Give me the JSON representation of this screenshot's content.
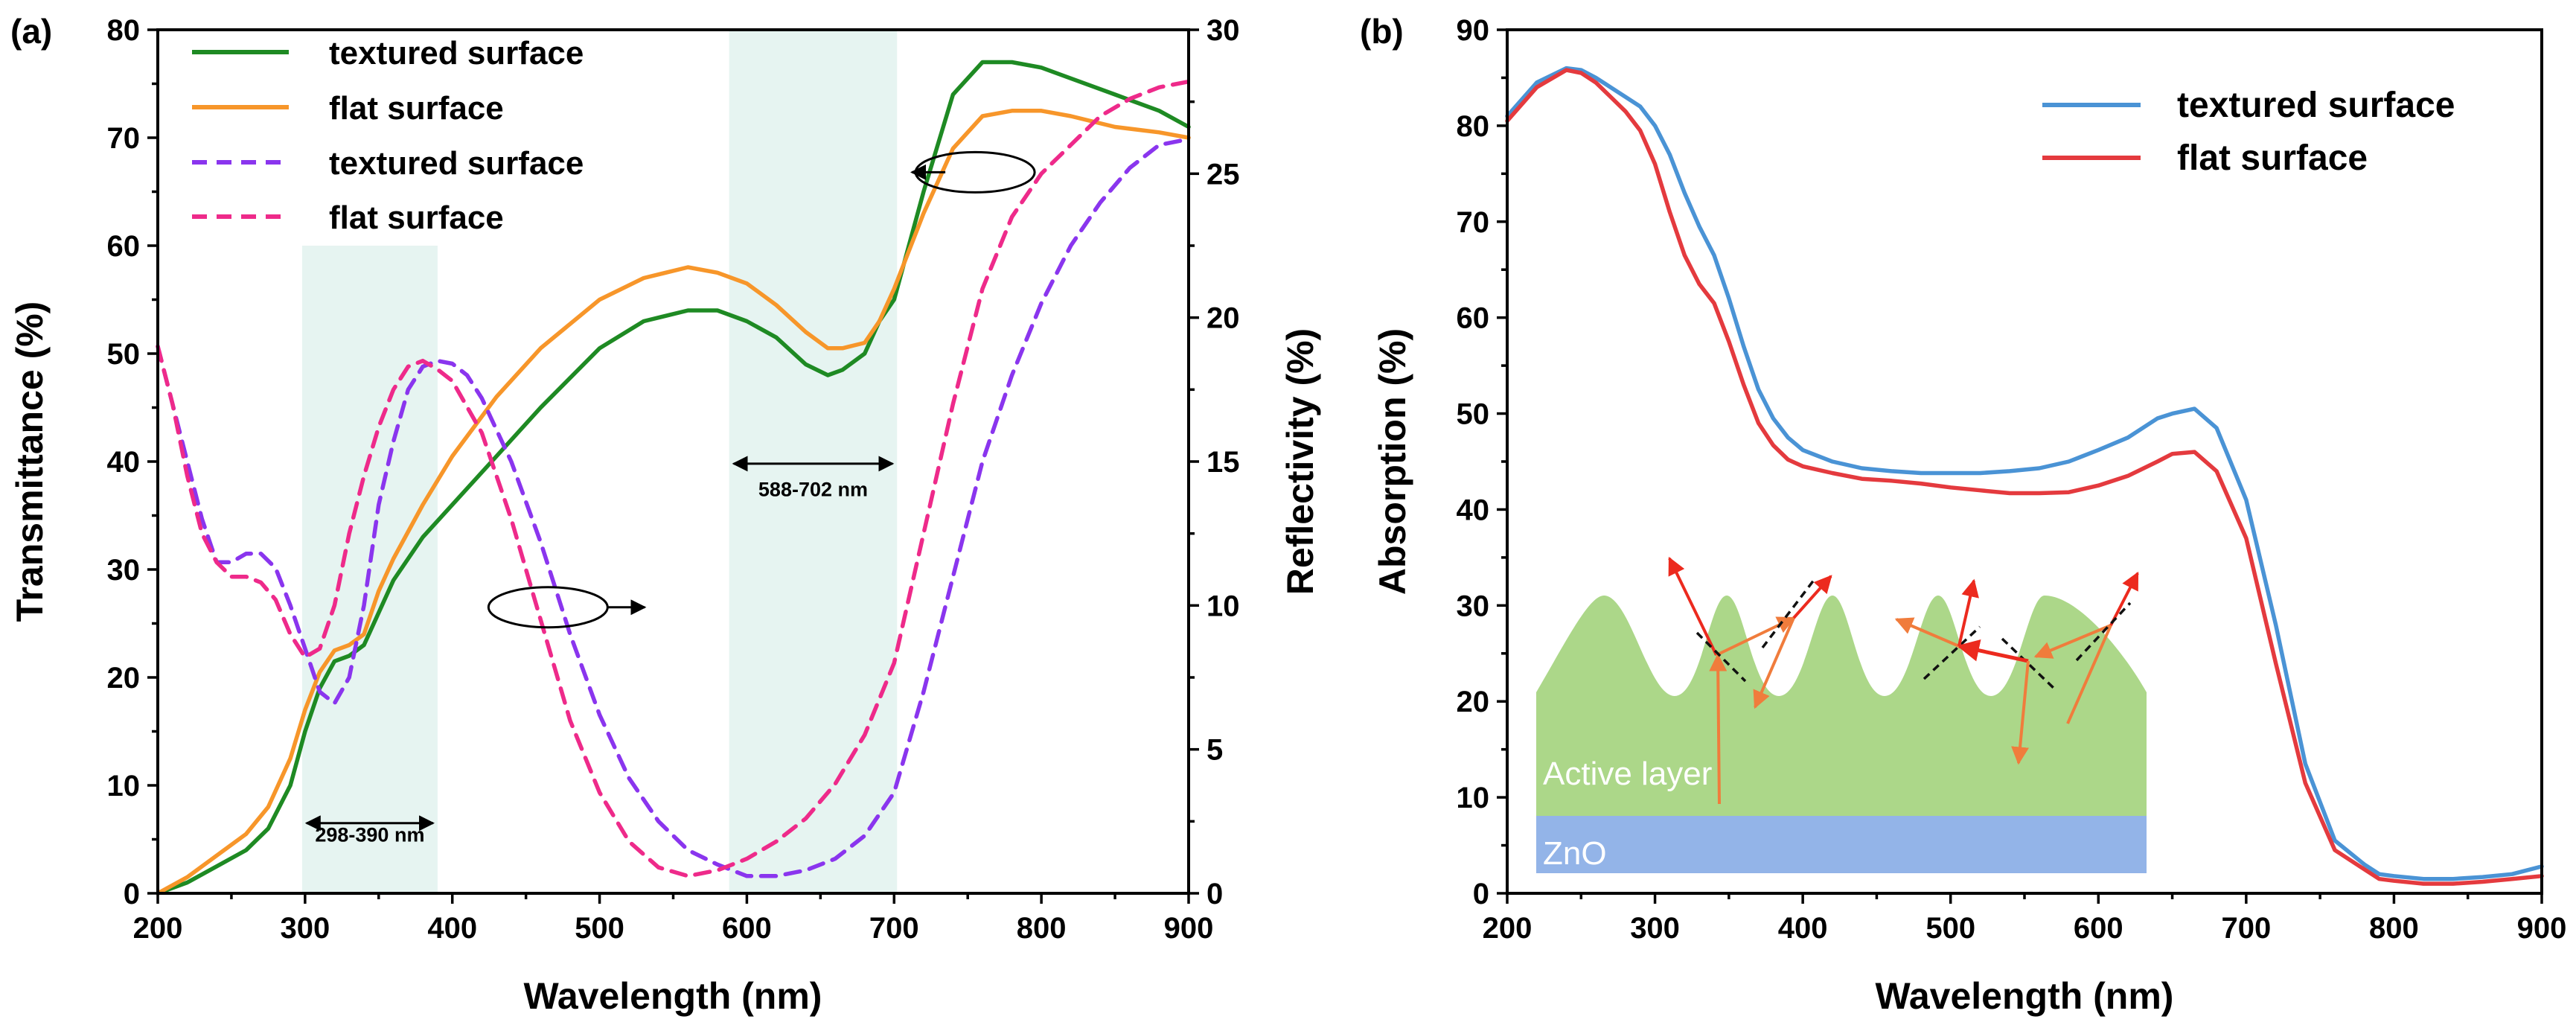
{
  "colors": {
    "green": "#1e8a23",
    "orange": "#f7962a",
    "purple": "#8a35ee",
    "pink": "#ee2a8a",
    "blue": "#4a93d5",
    "red": "#e43a3e",
    "band": "#e6f4f1",
    "active_layer": "#acd789",
    "zno": "#93b4e8",
    "ray_red": "#ec2a1e",
    "ray_orange": "#f07c3c"
  },
  "chart_data": [
    {
      "panel_label": "(a)",
      "type": "line",
      "xlabel": "Wavelength (nm)",
      "ylabel": "Transmittance (%)",
      "y2label": "Reflectivity (%)",
      "xlim": [
        200,
        900
      ],
      "ylim": [
        0,
        80
      ],
      "y2lim": [
        0,
        30
      ],
      "xticks": [
        "200",
        "300",
        "400",
        "500",
        "600",
        "700",
        "800",
        "900"
      ],
      "yticks": [
        "0",
        "10",
        "20",
        "30",
        "40",
        "50",
        "60",
        "70",
        "80"
      ],
      "y2ticks": [
        "0",
        "5",
        "10",
        "15",
        "20",
        "25",
        "30"
      ],
      "bands": [
        {
          "x0": 298,
          "x1": 390,
          "ytop": 60,
          "label": "298-390 nm",
          "label_y": 5.5,
          "arrow_y": 6.5
        },
        {
          "x0": 588,
          "x1": 702,
          "ytop": 80,
          "label": "588-702 nm",
          "label_y": 37.5,
          "arrow_y": 39.8
        }
      ],
      "axis_hints": [
        {
          "cx": 465,
          "cy": 26.5,
          "dir": "right"
        },
        {
          "cx": 755,
          "cy": 66.8,
          "dir": "left"
        }
      ],
      "series": [
        {
          "name": "textured surface",
          "axis": "left",
          "style": "solid",
          "color_key": "green",
          "x": [
            200,
            220,
            240,
            260,
            275,
            290,
            300,
            310,
            320,
            330,
            340,
            350,
            360,
            380,
            400,
            430,
            460,
            500,
            530,
            560,
            580,
            600,
            620,
            640,
            655,
            665,
            680,
            690,
            700,
            720,
            740,
            760,
            780,
            800,
            820,
            850,
            880,
            900
          ],
          "values": [
            0,
            1,
            2.5,
            4,
            6,
            10,
            15,
            19,
            21.5,
            22,
            23,
            26,
            29,
            33,
            36,
            40.5,
            45,
            50.5,
            53,
            54,
            54,
            53,
            51.5,
            49,
            48,
            48.5,
            50,
            53,
            55,
            65,
            74,
            77,
            77,
            76.5,
            75.5,
            74,
            72.5,
            71
          ]
        },
        {
          "name": "flat surface",
          "axis": "left",
          "style": "solid",
          "color_key": "orange",
          "x": [
            200,
            220,
            240,
            260,
            275,
            290,
            300,
            310,
            320,
            330,
            340,
            350,
            360,
            380,
            400,
            430,
            460,
            500,
            530,
            560,
            580,
            600,
            620,
            640,
            655,
            665,
            680,
            690,
            700,
            720,
            740,
            760,
            780,
            800,
            820,
            850,
            880,
            900
          ],
          "values": [
            0,
            1.5,
            3.5,
            5.5,
            8,
            12.5,
            17,
            20.5,
            22.5,
            23,
            24,
            28,
            31,
            36,
            40.5,
            46,
            50.5,
            55,
            57,
            58,
            57.5,
            56.5,
            54.5,
            52,
            50.5,
            50.5,
            51,
            53,
            56,
            63,
            69,
            72,
            72.5,
            72.5,
            72,
            71,
            70.5,
            70
          ]
        },
        {
          "name": "textured surface",
          "axis": "right",
          "style": "dashed",
          "color_key": "purple",
          "x": [
            200,
            210,
            220,
            230,
            240,
            250,
            260,
            270,
            280,
            290,
            300,
            310,
            320,
            330,
            340,
            350,
            360,
            370,
            380,
            390,
            400,
            410,
            420,
            440,
            460,
            480,
            500,
            520,
            540,
            560,
            580,
            600,
            620,
            640,
            660,
            680,
            700,
            720,
            740,
            760,
            780,
            800,
            820,
            840,
            860,
            880,
            900
          ],
          "values": [
            19,
            17,
            15,
            13,
            11.5,
            11.5,
            11.8,
            11.8,
            11.3,
            10,
            8.5,
            7,
            6.6,
            7.5,
            10,
            13.5,
            15.7,
            17.5,
            18.3,
            18.5,
            18.4,
            18,
            17.2,
            15,
            12.2,
            9,
            6.2,
            4,
            2.5,
            1.5,
            1,
            0.6,
            0.6,
            0.8,
            1.2,
            2,
            3.5,
            7,
            11,
            15,
            18,
            20.5,
            22.5,
            24,
            25.2,
            26,
            26.2
          ]
        },
        {
          "name": "flat surface",
          "axis": "right",
          "style": "dashed",
          "color_key": "pink",
          "x": [
            200,
            210,
            220,
            230,
            240,
            250,
            260,
            270,
            280,
            290,
            300,
            310,
            320,
            330,
            340,
            350,
            360,
            370,
            380,
            390,
            400,
            420,
            440,
            460,
            480,
            500,
            520,
            540,
            560,
            580,
            600,
            620,
            640,
            660,
            680,
            700,
            720,
            740,
            760,
            780,
            800,
            820,
            840,
            860,
            880,
            900
          ],
          "values": [
            19,
            17,
            14.5,
            12.5,
            11.5,
            11,
            11,
            10.8,
            10.2,
            9,
            8.2,
            8.5,
            10,
            12.5,
            14.5,
            16.2,
            17.5,
            18.3,
            18.5,
            18.2,
            17.8,
            16,
            13,
            9.5,
            6,
            3.5,
            1.8,
            0.9,
            0.6,
            0.8,
            1.2,
            1.8,
            2.6,
            3.8,
            5.5,
            8,
            12.5,
            17,
            21,
            23.5,
            25,
            26,
            27,
            27.6,
            28,
            28.2
          ]
        }
      ]
    },
    {
      "panel_label": "(b)",
      "type": "line",
      "xlabel": "Wavelength (nm)",
      "ylabel": "Absorption (%)",
      "xlim": [
        200,
        900
      ],
      "ylim": [
        0,
        90
      ],
      "xticks": [
        "200",
        "300",
        "400",
        "500",
        "600",
        "700",
        "800",
        "900"
      ],
      "yticks": [
        "0",
        "10",
        "20",
        "30",
        "40",
        "50",
        "60",
        "70",
        "80",
        "90"
      ],
      "series": [
        {
          "name": "textured surface",
          "style": "solid",
          "color_key": "blue",
          "x": [
            200,
            220,
            240,
            250,
            260,
            270,
            280,
            290,
            300,
            310,
            320,
            330,
            340,
            350,
            360,
            370,
            380,
            390,
            400,
            420,
            440,
            460,
            480,
            500,
            520,
            540,
            560,
            580,
            600,
            620,
            640,
            650,
            665,
            680,
            700,
            720,
            740,
            760,
            780,
            790,
            800,
            820,
            840,
            860,
            880,
            900
          ],
          "values": [
            81,
            84.5,
            86,
            85.8,
            85,
            84,
            83,
            82,
            80,
            77,
            73,
            69.5,
            66.5,
            62,
            57,
            52.5,
            49.5,
            47.5,
            46.2,
            45,
            44.3,
            44,
            43.8,
            43.8,
            43.8,
            44,
            44.3,
            45,
            46.2,
            47.5,
            49.5,
            50,
            50.5,
            48.5,
            41,
            28,
            13.5,
            5.5,
            3,
            2,
            1.8,
            1.5,
            1.5,
            1.7,
            2,
            2.8
          ]
        },
        {
          "name": "flat surface",
          "style": "solid",
          "color_key": "red",
          "x": [
            200,
            220,
            240,
            250,
            260,
            270,
            280,
            290,
            300,
            310,
            320,
            330,
            340,
            350,
            360,
            370,
            380,
            390,
            400,
            420,
            440,
            460,
            480,
            500,
            520,
            540,
            560,
            580,
            600,
            620,
            640,
            650,
            665,
            680,
            700,
            720,
            740,
            760,
            780,
            790,
            800,
            820,
            840,
            860,
            880,
            900
          ],
          "values": [
            80.5,
            84,
            85.8,
            85.5,
            84.5,
            83,
            81.5,
            79.5,
            76,
            71,
            66.5,
            63.5,
            61.5,
            57.5,
            53,
            49,
            46.7,
            45.2,
            44.5,
            43.8,
            43.2,
            43,
            42.7,
            42.3,
            42,
            41.7,
            41.7,
            41.8,
            42.5,
            43.5,
            45,
            45.8,
            46,
            44,
            37,
            24,
            11.5,
            4.5,
            2.5,
            1.5,
            1.3,
            1,
            1,
            1.2,
            1.5,
            1.8
          ]
        }
      ],
      "inset": {
        "active_layer_label": "Active layer",
        "substrate_label": "ZnO"
      }
    }
  ]
}
